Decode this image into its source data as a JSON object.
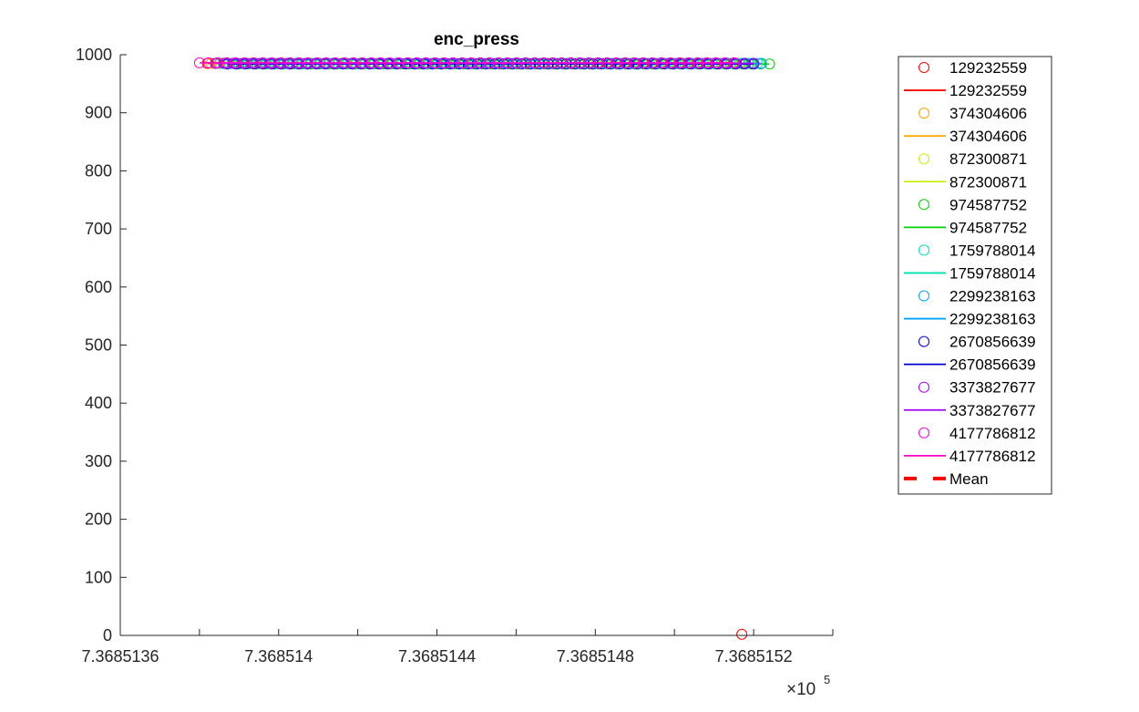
{
  "chart_data": {
    "type": "scatter",
    "title": "enc_press",
    "xlabel": "",
    "ylabel": "",
    "x_scale_factor_label": "×10",
    "x_scale_factor_exponent": "5",
    "xlim": [
      7.3685136,
      7.3685154
    ],
    "ylim": [
      0,
      1000
    ],
    "x_tick_values": [
      7.3685136,
      7.3685138,
      7.368514,
      7.3685142,
      7.3685144,
      7.3685146,
      7.3685148,
      7.368515,
      7.3685152,
      7.3685154
    ],
    "x_tick_labels": [
      "7.3685136",
      "",
      "7.368514",
      "",
      "7.3685144",
      "",
      "7.3685148",
      "",
      "7.3685152",
      ""
    ],
    "y_ticks": [
      0,
      100,
      200,
      300,
      400,
      500,
      600,
      700,
      800,
      900,
      1000
    ],
    "y_tick_labels": [
      "0",
      "100",
      "200",
      "300",
      "400",
      "500",
      "600",
      "700",
      "800",
      "900",
      "1000"
    ],
    "grid": false,
    "legend_position": "outside-right",
    "series": [
      {
        "name": "129232559",
        "color": "#ff0000",
        "mean": 985,
        "x_range": [
          7.36851382,
          7.36851518
        ],
        "y": 985,
        "outliers": [
          {
            "x": 7.36851517,
            "y": 2
          }
        ]
      },
      {
        "name": "374304606",
        "color": "#ffa500",
        "mean": 985,
        "x_range": [
          7.36851383,
          7.36851517
        ],
        "y": 985
      },
      {
        "name": "872300871",
        "color": "#c8f000",
        "mean": 985,
        "x_range": [
          7.36851384,
          7.36851519
        ],
        "y": 985
      },
      {
        "name": "974587752",
        "color": "#00d000",
        "mean": 984,
        "x_range": [
          7.3685139,
          7.36851524
        ],
        "y": 984
      },
      {
        "name": "1759788014",
        "color": "#00e0b0",
        "mean": 985,
        "x_range": [
          7.36851385,
          7.36851521
        ],
        "y": 985
      },
      {
        "name": "2299238163",
        "color": "#00a0ff",
        "mean": 985,
        "x_range": [
          7.36851386,
          7.36851522
        ],
        "y": 985
      },
      {
        "name": "2670856639",
        "color": "#0000d0",
        "mean": 984,
        "x_range": [
          7.36851387,
          7.3685152
        ],
        "y": 984
      },
      {
        "name": "3373827677",
        "color": "#a000ff",
        "mean": 985,
        "x_range": [
          7.36851384,
          7.3685152
        ],
        "y": 985
      },
      {
        "name": "4177786812",
        "color": "#ff00c8",
        "mean": 986,
        "x_range": [
          7.3685138,
          7.36851515
        ],
        "y": 986
      }
    ],
    "mean_legend_label": "Mean",
    "mean_color": "#ff0000"
  }
}
